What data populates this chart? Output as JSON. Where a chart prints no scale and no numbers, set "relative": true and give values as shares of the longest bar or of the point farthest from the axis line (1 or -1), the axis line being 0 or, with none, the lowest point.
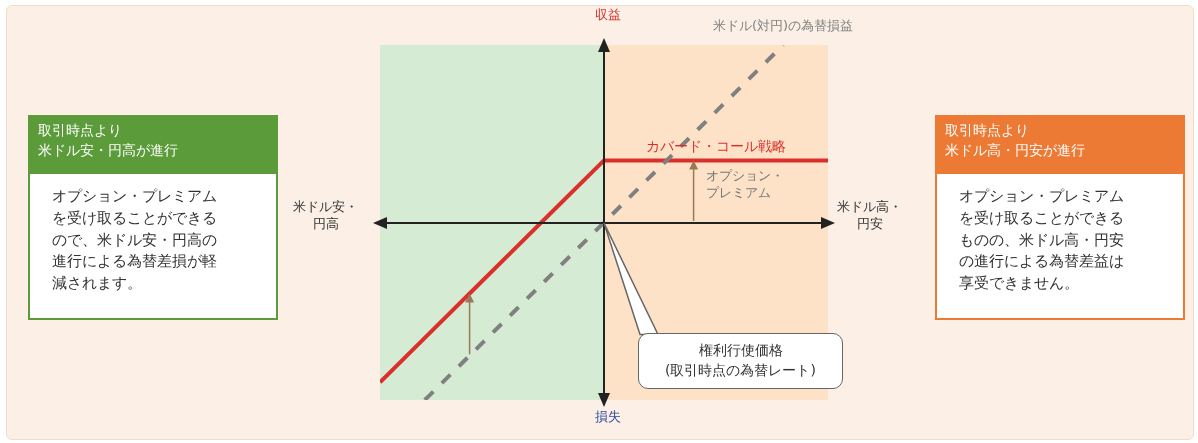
{
  "chart_data": {
    "type": "line",
    "relative": true,
    "legend": false,
    "grid": false,
    "marker": "none",
    "categories": [
      null,
      null,
      null,
      null,
      null,
      null,
      null,
      null,
      null,
      null,
      null
    ],
    "series": [
      {
        "name": "カバード・コール戦略",
        "color": "#d9302c",
        "line_style": "solid",
        "values": [
          -0.9,
          -0.65,
          -0.4,
          -0.15,
          0.1,
          0.35,
          0.35,
          0.35,
          0.35,
          0.35,
          0.35
        ]
      },
      {
        "name": "米ドル(対円)の為替損益",
        "color": "#808080",
        "line_style": "dashed",
        "values": [
          null,
          -1,
          -0.75,
          -0.5,
          -0.25,
          0,
          0.25,
          0.5,
          0.75,
          1,
          null
        ]
      }
    ],
    "annotations": [
      "収益",
      "損失",
      "米ドル安・円高",
      "米ドル高・円安",
      "オプション・プレミアム",
      "権利行使価格",
      "(取引時点の為替レート)",
      "取引時点より",
      "米ドル安・円高が進行",
      "オプション・プレミアムを受け取ることができるので、米ドル安・円高の進行による為替差損が軽減されます。",
      "取引時点より",
      "米ドル高・円安が進行",
      "オプション・プレミアムを受け取ることができるものの、米ドル高・円安の進行による為替差益は享受できません。"
    ]
  }
}
